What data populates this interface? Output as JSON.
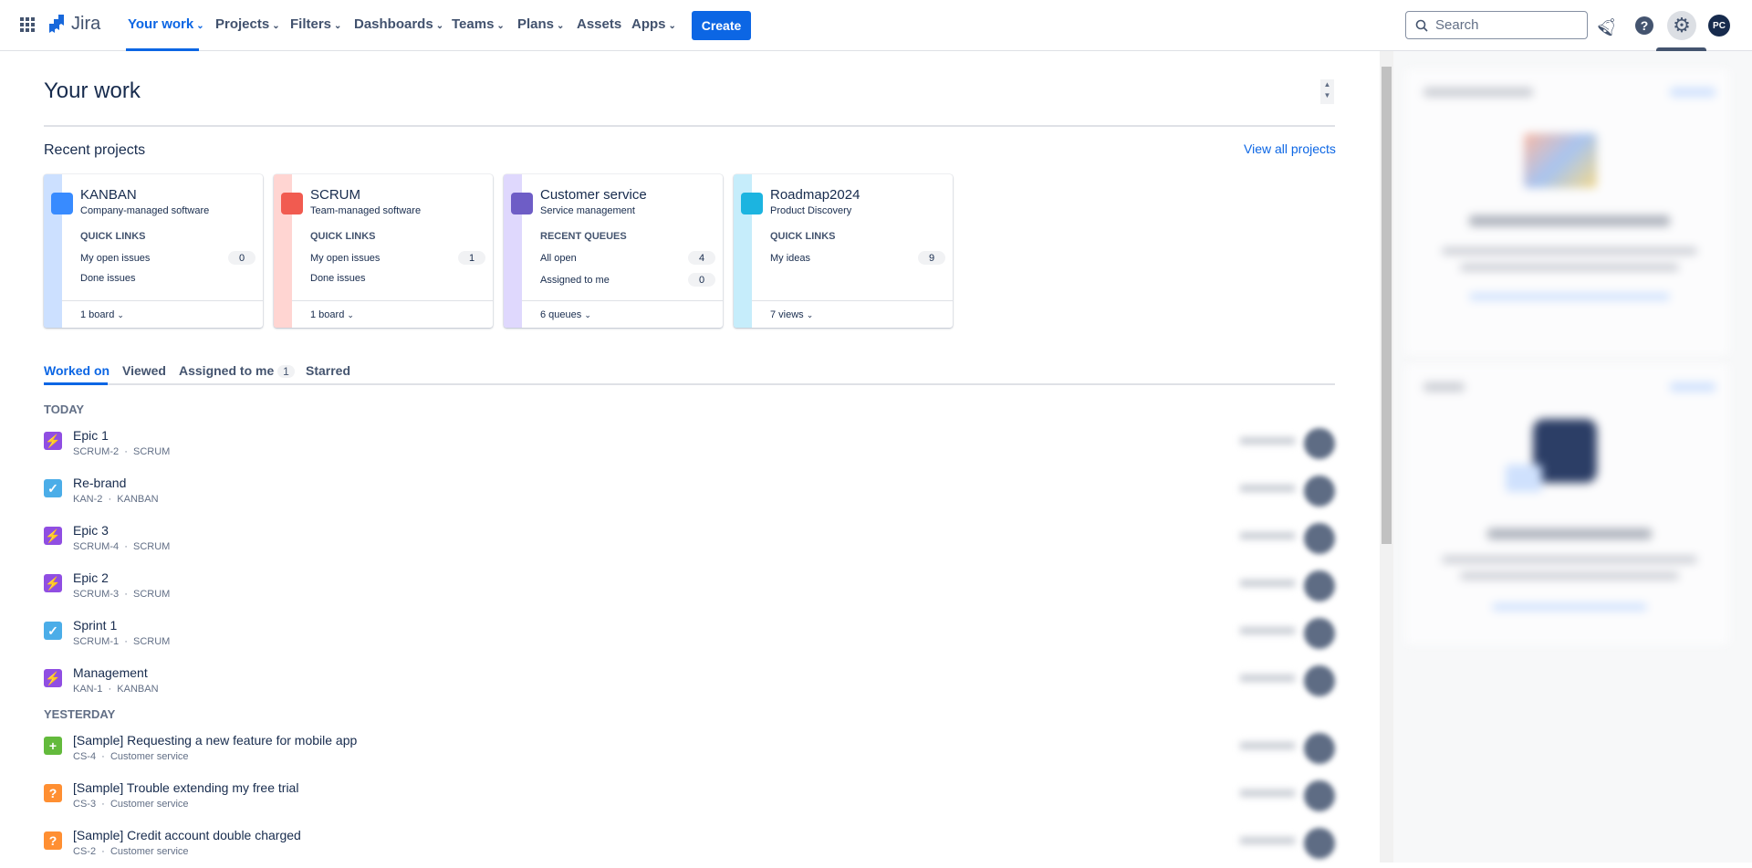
{
  "nav": {
    "logo": "Jira",
    "items": [
      {
        "label": "Your work",
        "chev": true,
        "active": true
      },
      {
        "label": "Projects",
        "chev": true
      },
      {
        "label": "Filters",
        "chev": true
      },
      {
        "label": "Dashboards",
        "chev": true
      },
      {
        "label": "Teams",
        "chev": true
      },
      {
        "label": "Plans",
        "chev": true
      },
      {
        "label": "Assets",
        "chev": false
      },
      {
        "label": "Apps",
        "chev": true
      }
    ],
    "create": "Create",
    "search_placeholder": "Search",
    "avatar": "PC",
    "tooltip": "Settings",
    "accent": "#0c66e4"
  },
  "page": {
    "title": "Your work",
    "recent_projects": "Recent projects",
    "view_all": "View all projects"
  },
  "projects": [
    {
      "name": "KANBAN",
      "type": "Company-managed software",
      "label": "QUICK LINKS",
      "links": [
        {
          "label": "My open issues",
          "count": "0"
        },
        {
          "label": "Done issues"
        }
      ],
      "footer": "1 board",
      "stripe": "#cce0ff",
      "icon": "#388bff"
    },
    {
      "name": "SCRUM",
      "type": "Team-managed software",
      "label": "QUICK LINKS",
      "links": [
        {
          "label": "My open issues",
          "count": "1"
        },
        {
          "label": "Done issues"
        }
      ],
      "footer": "1 board",
      "stripe": "#ffd5d2",
      "icon": "#f15b50"
    },
    {
      "name": "Customer service",
      "type": "Service management",
      "label": "RECENT QUEUES",
      "links": [
        {
          "label": "All open",
          "count": "4"
        },
        {
          "label": "Assigned to me",
          "count": "0"
        }
      ],
      "footer": "6 queues",
      "stripe": "#dfd8fd",
      "icon": "#6e5dc6"
    },
    {
      "name": "Roadmap2024",
      "type": "Product Discovery",
      "label": "QUICK LINKS",
      "links": [
        {
          "label": "My ideas",
          "count": "9"
        }
      ],
      "footer": "7 views",
      "stripe": "#c6edfb",
      "icon": "#1cb4e0"
    }
  ],
  "tabs": [
    {
      "label": "Worked on",
      "active": true
    },
    {
      "label": "Viewed"
    },
    {
      "label": "Assigned to me",
      "count": "1"
    },
    {
      "label": "Starred"
    }
  ],
  "sections": [
    {
      "label": "TODAY",
      "items": [
        {
          "title": "Epic 1",
          "key": "SCRUM-2",
          "project": "SCRUM",
          "type": "epic"
        },
        {
          "title": "Re-brand",
          "key": "KAN-2",
          "project": "KANBAN",
          "type": "task"
        },
        {
          "title": "Epic 3",
          "key": "SCRUM-4",
          "project": "SCRUM",
          "type": "epic"
        },
        {
          "title": "Epic 2",
          "key": "SCRUM-3",
          "project": "SCRUM",
          "type": "epic"
        },
        {
          "title": "Sprint 1",
          "key": "SCRUM-1",
          "project": "SCRUM",
          "type": "task"
        },
        {
          "title": "Management",
          "key": "KAN-1",
          "project": "KANBAN",
          "type": "epic"
        }
      ]
    },
    {
      "label": "YESTERDAY",
      "items": [
        {
          "title": "[Sample] Requesting a new feature for mobile app",
          "key": "CS-4",
          "project": "Customer service",
          "type": "new-feature"
        },
        {
          "title": "[Sample] Trouble extending my free trial",
          "key": "CS-3",
          "project": "Customer service",
          "type": "question"
        },
        {
          "title": "[Sample] Credit account double charged",
          "key": "CS-2",
          "project": "Customer service",
          "type": "question"
        }
      ]
    }
  ],
  "type_icons": {
    "epic": {
      "color": "#904ee2",
      "glyph": "⚡"
    },
    "task": {
      "color": "#4bade8",
      "glyph": "✓"
    },
    "new-feature": {
      "color": "#63ba3c",
      "glyph": "+"
    },
    "question": {
      "color": "#ff8f32",
      "glyph": "?"
    }
  }
}
